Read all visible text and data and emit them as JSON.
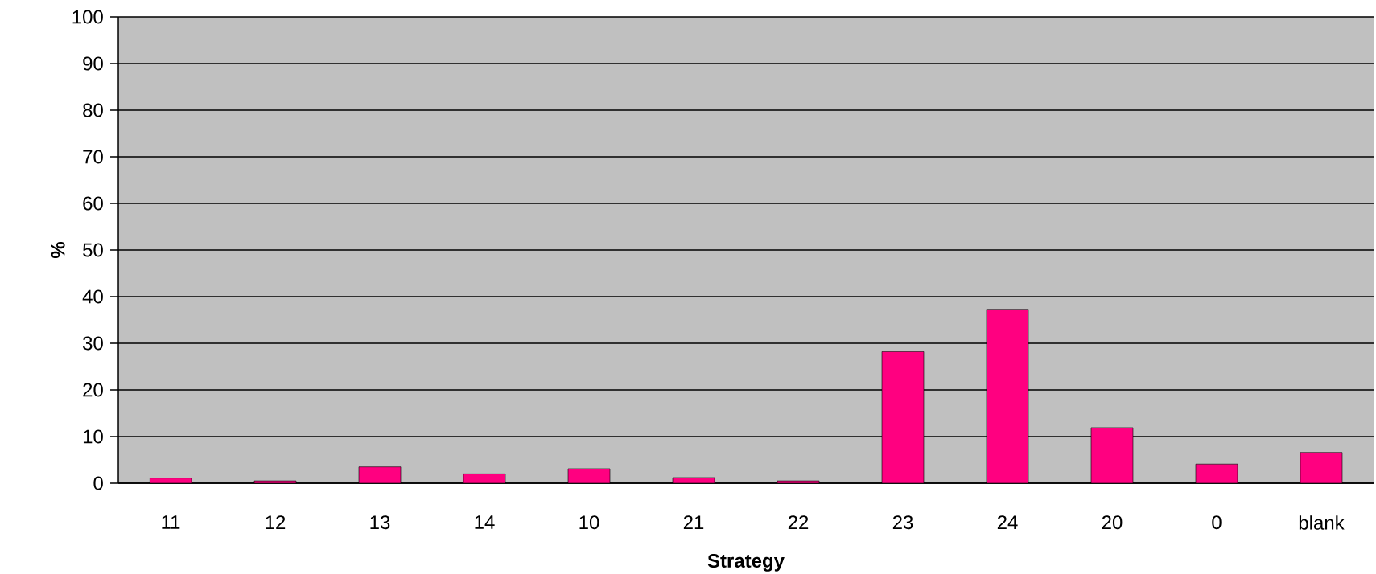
{
  "chart_data": {
    "type": "bar",
    "xlabel": "Strategy",
    "ylabel": "%",
    "categories": [
      "11",
      "12",
      "13",
      "14",
      "10",
      "21",
      "22",
      "23",
      "24",
      "20",
      "0",
      "blank"
    ],
    "values": [
      1.1,
      0.5,
      3.5,
      2.0,
      3.1,
      1.2,
      0.5,
      28.2,
      37.3,
      11.9,
      4.1,
      6.6
    ],
    "color": "#ff0080",
    "ylim": [
      0,
      100
    ],
    "yticks": [
      0,
      10,
      20,
      30,
      40,
      50,
      60,
      70,
      80,
      90,
      100
    ],
    "grid": "y"
  }
}
